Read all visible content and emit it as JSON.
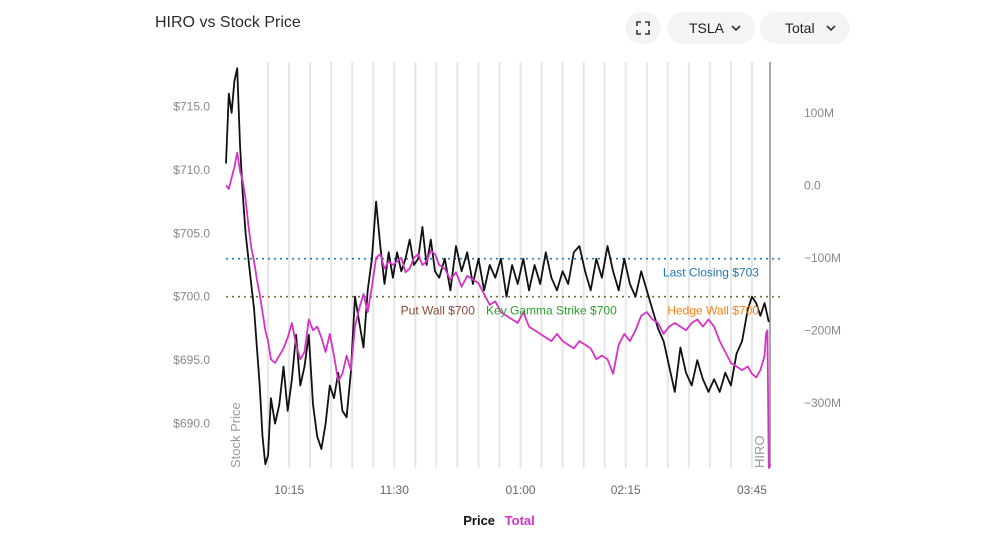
{
  "title": "HIRO vs Stock Price",
  "controls": {
    "ticker": "TSLA",
    "mode": "Total"
  },
  "legend": [
    {
      "label": "Price",
      "color": "#111111"
    },
    {
      "label": "Total",
      "color": "#d633c4"
    }
  ],
  "colors": {
    "price": "#111111",
    "hiro": "#d633c4",
    "grid": "#e6e6e6",
    "last_closing": "#1f77b4",
    "put_wall": "#8c4a3a",
    "key_gamma": "#2ca02c",
    "hedge_wall": "#ff7f0e"
  },
  "chart_data": {
    "type": "line",
    "y_left_label": "Stock Price",
    "y_right_label": "HIRO",
    "y_left_range": [
      686.5,
      718.5
    ],
    "y_right_range": [
      -390,
      170
    ],
    "x_range_minutes": [
      0,
      390
    ],
    "y_left_ticks": [
      "$690.0",
      "$695.0",
      "$700.0",
      "$705.0",
      "$710.0",
      "$715.0"
    ],
    "y_left_tick_values": [
      690,
      695,
      700,
      705,
      710,
      715
    ],
    "y_right_ticks": [
      "100M",
      "0.0",
      "−100M",
      "−200M",
      "−300M"
    ],
    "y_right_tick_values": [
      100,
      0,
      -100,
      -200,
      -300
    ],
    "x_ticks": [
      "10:15",
      "11:30",
      "01:00",
      "02:15",
      "03:45"
    ],
    "x_tick_minutes": [
      45,
      120,
      210,
      285,
      375
    ],
    "grid_minutes": [
      30,
      45,
      60,
      75,
      90,
      105,
      120,
      135,
      150,
      165,
      180,
      195,
      210,
      225,
      240,
      255,
      270,
      285,
      300,
      315,
      330,
      345,
      360,
      375
    ],
    "levels": [
      {
        "label": "Last Closing $703",
        "value": 703,
        "key": "last_closing",
        "label_minute": 380
      },
      {
        "label": "Put Wall $700",
        "value": 700,
        "key": "put_wall",
        "label_minute": 151
      },
      {
        "label": "Key Gamma Strike $700",
        "value": 700,
        "key": "key_gamma",
        "label_minute": 232
      },
      {
        "label": "Hedge Wall $700",
        "value": 700,
        "key": "hedge_wall",
        "label_minute": 380
      }
    ],
    "series": [
      {
        "name": "Price",
        "axis": "left",
        "minutes": [
          0,
          2,
          4,
          6,
          8,
          10,
          12,
          14,
          16,
          18,
          20,
          22,
          24,
          26,
          28,
          30,
          32,
          35,
          38,
          41,
          44,
          47,
          50,
          53,
          56,
          59,
          62,
          65,
          68,
          71,
          74,
          77,
          80,
          83,
          86,
          89,
          92,
          95,
          98,
          101,
          104,
          107,
          110,
          113,
          116,
          119,
          122,
          125,
          128,
          131,
          134,
          137,
          140,
          143,
          146,
          149,
          152,
          156,
          160,
          164,
          168,
          172,
          176,
          180,
          184,
          188,
          192,
          196,
          200,
          204,
          208,
          212,
          216,
          220,
          224,
          228,
          232,
          236,
          240,
          244,
          248,
          252,
          256,
          260,
          264,
          268,
          272,
          276,
          280,
          284,
          288,
          292,
          296,
          300,
          304,
          308,
          312,
          316,
          320,
          324,
          328,
          332,
          336,
          340,
          344,
          348,
          352,
          356,
          360,
          364,
          368,
          372,
          375,
          378,
          381,
          384,
          387
        ],
        "values": [
          710.5,
          716.0,
          714.5,
          717.0,
          718.0,
          712.0,
          708.0,
          705.0,
          703.0,
          701.0,
          699.0,
          696.0,
          693.0,
          689.0,
          686.8,
          687.5,
          692.0,
          690.0,
          691.5,
          694.5,
          691.0,
          693.5,
          697.0,
          693.0,
          694.5,
          697.0,
          691.5,
          689.0,
          688.0,
          690.0,
          693.0,
          692.0,
          694.0,
          691.0,
          690.5,
          694.0,
          700.0,
          698.0,
          696.0,
          700.5,
          703.0,
          707.5,
          704.0,
          701.0,
          703.5,
          701.5,
          703.5,
          702.0,
          703.0,
          704.5,
          702.5,
          703.0,
          705.5,
          702.5,
          704.5,
          702.0,
          701.5,
          703.0,
          700.5,
          704.0,
          702.0,
          703.5,
          701.0,
          703.0,
          700.5,
          702.5,
          701.5,
          703.0,
          700.0,
          702.5,
          701.0,
          703.0,
          700.5,
          702.5,
          701.0,
          703.5,
          701.5,
          700.5,
          702.0,
          701.0,
          703.5,
          704.0,
          702.0,
          700.5,
          703.0,
          701.5,
          704.0,
          702.0,
          700.5,
          703.0,
          701.0,
          700.0,
          702.0,
          700.5,
          699.0,
          697.5,
          696.5,
          694.5,
          692.5,
          696.0,
          694.0,
          693.0,
          695.0,
          693.5,
          692.5,
          693.5,
          692.5,
          694.0,
          693.0,
          695.5,
          696.5,
          699.0,
          700.0,
          699.5,
          698.5,
          699.5,
          698.0
        ]
      },
      {
        "name": "Total",
        "axis": "right",
        "minutes": [
          0,
          2,
          4,
          6,
          8,
          10,
          12,
          14,
          16,
          18,
          20,
          22,
          24,
          26,
          28,
          30,
          32,
          35,
          38,
          41,
          44,
          47,
          50,
          53,
          56,
          59,
          62,
          65,
          68,
          71,
          74,
          77,
          80,
          83,
          86,
          89,
          92,
          95,
          98,
          101,
          104,
          107,
          110,
          113,
          116,
          119,
          122,
          125,
          128,
          131,
          134,
          137,
          140,
          143,
          146,
          149,
          152,
          156,
          160,
          164,
          168,
          172,
          176,
          180,
          184,
          188,
          192,
          196,
          200,
          204,
          208,
          212,
          216,
          220,
          224,
          228,
          232,
          236,
          240,
          244,
          248,
          252,
          256,
          260,
          264,
          268,
          272,
          276,
          280,
          284,
          288,
          292,
          296,
          300,
          304,
          308,
          312,
          316,
          320,
          324,
          328,
          332,
          336,
          340,
          344,
          348,
          352,
          356,
          360,
          364,
          368,
          372,
          375,
          378,
          381,
          384,
          385,
          386,
          387,
          388
        ],
        "values": [
          0,
          -5,
          10,
          25,
          45,
          20,
          5,
          -20,
          -55,
          -85,
          -105,
          -130,
          -150,
          -175,
          -200,
          -215,
          -240,
          -245,
          -235,
          -225,
          -210,
          -190,
          -220,
          -240,
          -230,
          -185,
          -200,
          -195,
          -210,
          -230,
          -205,
          -235,
          -270,
          -260,
          -235,
          -255,
          -195,
          -170,
          -150,
          -175,
          -140,
          -100,
          -95,
          -115,
          -105,
          -110,
          -105,
          -100,
          -120,
          -115,
          -100,
          -95,
          -110,
          -105,
          -90,
          -95,
          -110,
          -115,
          -130,
          -120,
          -140,
          -125,
          -130,
          -135,
          -150,
          -165,
          -160,
          -175,
          -180,
          -185,
          -190,
          -175,
          -195,
          -200,
          -205,
          -210,
          -215,
          -205,
          -215,
          -220,
          -225,
          -215,
          -220,
          -225,
          -240,
          -235,
          -240,
          -260,
          -220,
          -205,
          -215,
          -200,
          -180,
          -175,
          -185,
          -190,
          -205,
          -195,
          -190,
          -195,
          -200,
          -190,
          -185,
          -195,
          -185,
          -195,
          -215,
          -230,
          -245,
          -250,
          -255,
          -250,
          -260,
          -265,
          -255,
          -235,
          -205,
          -200,
          -390,
          -385
        ]
      }
    ]
  }
}
